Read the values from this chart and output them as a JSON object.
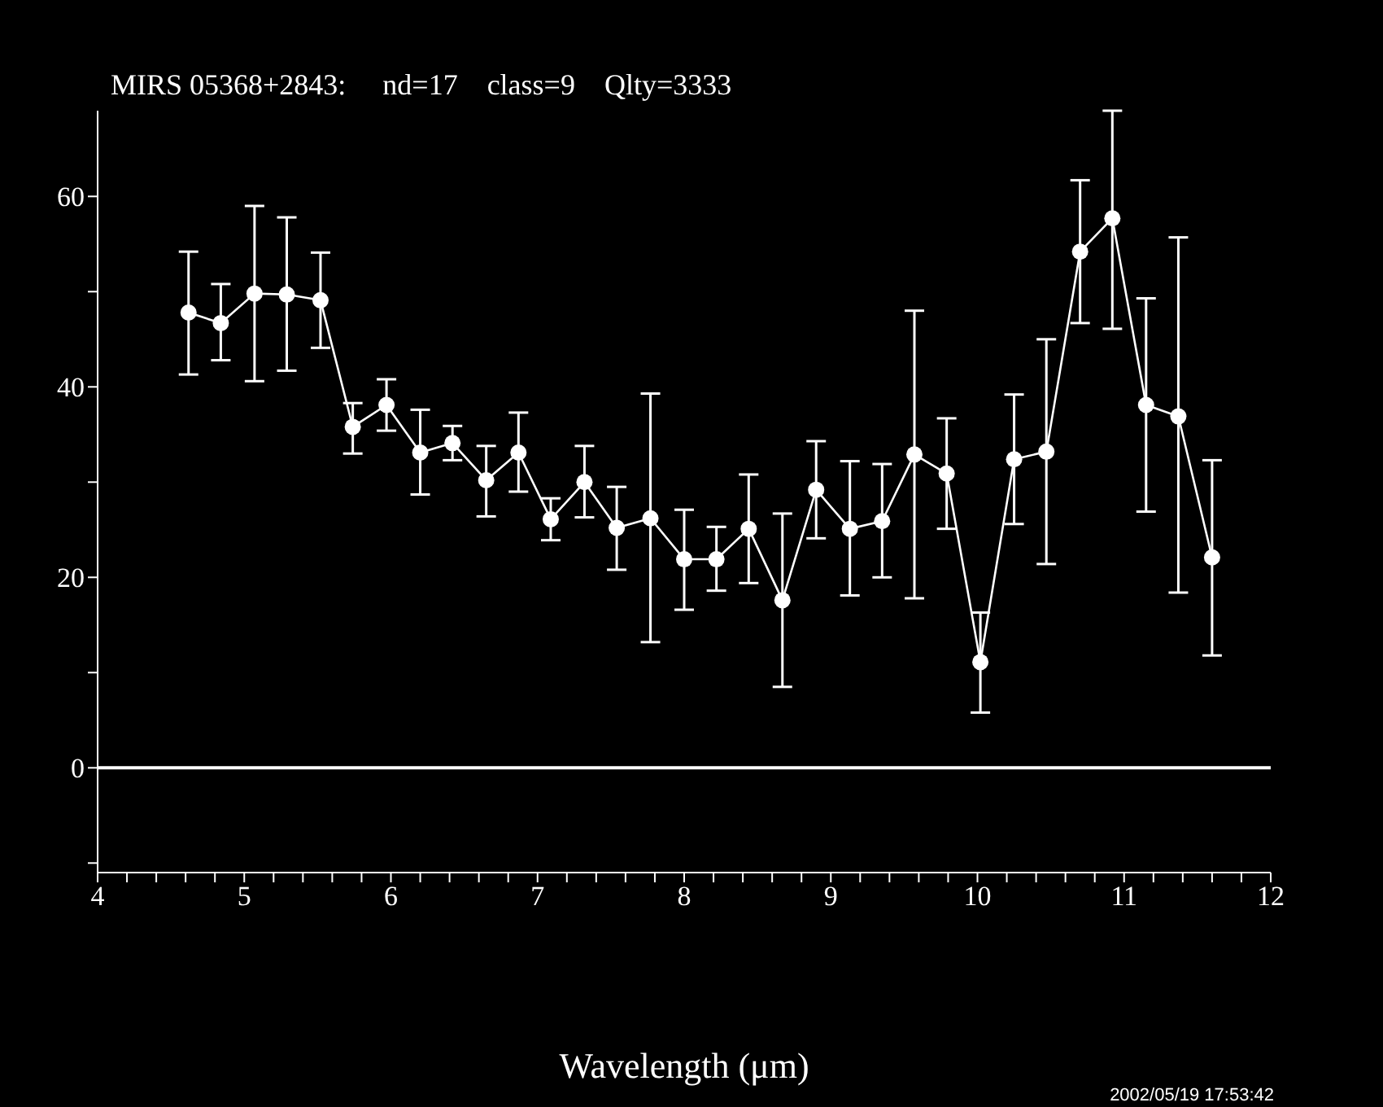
{
  "chart_data": {
    "type": "line",
    "title": "MIRS 05368+2843:     nd=17    class=9    Qlty=3333",
    "xlabel": "Wavelength (μm)",
    "annotations": [
      "2002/05/19 17:53:42"
    ],
    "x": [
      4.62,
      4.84,
      5.07,
      5.29,
      5.52,
      5.74,
      5.97,
      6.2,
      6.42,
      6.65,
      6.87,
      7.09,
      7.32,
      7.54,
      7.77,
      8.0,
      8.22,
      8.44,
      8.67,
      8.9,
      9.13,
      9.35,
      9.57,
      9.79,
      10.02,
      10.25,
      10.47,
      10.7,
      10.92,
      11.15,
      11.37,
      11.6
    ],
    "series": [
      {
        "color": "#ffffff",
        "values": [
          47.8,
          46.7,
          49.8,
          49.7,
          49.1,
          35.8,
          38.1,
          33.1,
          34.1,
          30.2,
          33.1,
          26.1,
          30.0,
          25.2,
          26.2,
          21.9,
          21.9,
          25.1,
          17.6,
          29.2,
          25.1,
          25.9,
          32.9,
          30.9,
          11.1,
          32.4,
          33.2,
          54.2,
          57.7,
          38.1,
          36.9,
          22.1
        ],
        "errors": [
          [
            41.3,
            54.2
          ],
          [
            42.8,
            50.8
          ],
          [
            40.6,
            59.0
          ],
          [
            41.7,
            57.8
          ],
          [
            44.1,
            54.1
          ],
          [
            33.0,
            38.3
          ],
          [
            35.4,
            40.8
          ],
          [
            28.7,
            37.6
          ],
          [
            32.3,
            35.9
          ],
          [
            26.4,
            33.8
          ],
          [
            29.0,
            37.3
          ],
          [
            23.9,
            28.3
          ],
          [
            26.3,
            33.8
          ],
          [
            20.8,
            29.5
          ],
          [
            13.2,
            39.3
          ],
          [
            16.6,
            27.1
          ],
          [
            18.6,
            25.3
          ],
          [
            19.4,
            30.8
          ],
          [
            8.5,
            26.7
          ],
          [
            24.1,
            34.3
          ],
          [
            18.1,
            32.2
          ],
          [
            20.0,
            31.9
          ],
          [
            17.8,
            48.0
          ],
          [
            25.1,
            36.7
          ],
          [
            5.8,
            16.3
          ],
          [
            25.6,
            39.2
          ],
          [
            21.4,
            45.0
          ],
          [
            46.7,
            61.7
          ],
          [
            46.1,
            69.0
          ],
          [
            26.9,
            49.3
          ],
          [
            18.4,
            55.7
          ],
          [
            11.8,
            32.3
          ]
        ]
      }
    ],
    "xlim": [
      4,
      12
    ],
    "xticks": [
      4,
      {
        "value": 4.2,
        "label": null
      },
      {
        "value": 4.4,
        "label": null
      },
      {
        "value": 4.6,
        "label": null
      },
      {
        "value": 4.8,
        "label": null
      },
      5,
      {
        "value": 5.2,
        "label": null
      },
      {
        "value": 5.4,
        "label": null
      },
      {
        "value": 5.6,
        "label": null
      },
      {
        "value": 5.8,
        "label": null
      },
      6,
      {
        "value": 6.2,
        "label": null
      },
      {
        "value": 6.4,
        "label": null
      },
      {
        "value": 6.6,
        "label": null
      },
      {
        "value": 6.8,
        "label": null
      },
      7,
      {
        "value": 7.2,
        "label": null
      },
      {
        "value": 7.4,
        "label": null
      },
      {
        "value": 7.6,
        "label": null
      },
      {
        "value": 7.8,
        "label": null
      },
      8,
      {
        "value": 8.2,
        "label": null
      },
      {
        "value": 8.4,
        "label": null
      },
      {
        "value": 8.6,
        "label": null
      },
      {
        "value": 8.8,
        "label": null
      },
      9,
      {
        "value": 9.2,
        "label": null
      },
      {
        "value": 9.4,
        "label": null
      },
      {
        "value": 9.6,
        "label": null
      },
      {
        "value": 9.8,
        "label": null
      },
      10,
      {
        "value": 10.2,
        "label": null
      },
      {
        "value": 10.4,
        "label": null
      },
      {
        "value": 10.6,
        "label": null
      },
      {
        "value": 10.8,
        "label": null
      },
      11,
      {
        "value": 11.2,
        "label": null
      },
      {
        "value": 11.4,
        "label": null
      },
      {
        "value": 11.6,
        "label": null
      },
      {
        "value": 11.8,
        "label": null
      },
      12
    ],
    "ylim": [
      -11,
      69
    ],
    "yticks": [
      {
        "value": -10,
        "label": null
      },
      0,
      {
        "value": 10,
        "label": null
      },
      20,
      {
        "value": 30,
        "label": null
      },
      40,
      {
        "value": 50,
        "label": null
      },
      60
    ],
    "ref_lines": [
      {
        "axis": "y",
        "value": 0,
        "color": "#ffffff"
      }
    ],
    "marker": "circle",
    "line_style": "solid"
  }
}
